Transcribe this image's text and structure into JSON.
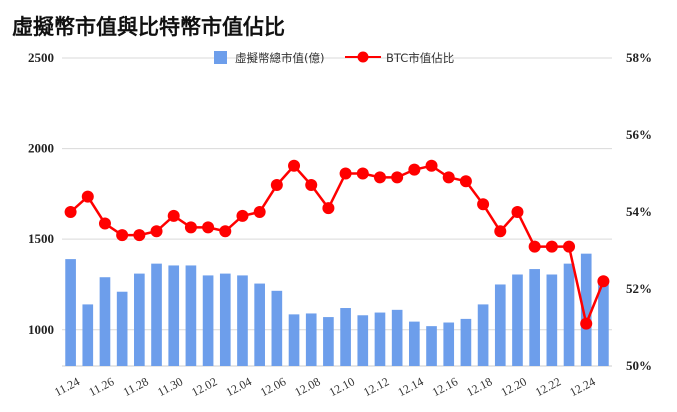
{
  "chart_data": {
    "type": "bar+line",
    "title": "虛擬幣市值與比特幣市值佔比",
    "categories": [
      "11.24",
      "11.25",
      "11.26",
      "11.27",
      "11.28",
      "11.29",
      "11.30",
      "12.01",
      "12.02",
      "12.03",
      "12.04",
      "12.05",
      "12.06",
      "12.07",
      "12.08",
      "12.09",
      "12.10",
      "12.11",
      "12.12",
      "12.13",
      "12.14",
      "12.15",
      "12.16",
      "12.17",
      "12.18",
      "12.19",
      "12.20",
      "12.21",
      "12.22",
      "12.23",
      "12.24",
      "12.25"
    ],
    "x_tick_labels": [
      "11.24",
      "11.26",
      "11.28",
      "11.30",
      "12.02",
      "12.04",
      "12.06",
      "12.08",
      "12.10",
      "12.12",
      "12.14",
      "12.16",
      "12.18",
      "12.20",
      "12.22",
      "12.24"
    ],
    "left_axis": {
      "ticks": [
        "1000",
        "1500",
        "2000",
        "2500"
      ],
      "range": [
        800,
        2500
      ]
    },
    "right_axis": {
      "ticks": [
        "50%",
        "52%",
        "54%",
        "56%",
        "58%"
      ],
      "range": [
        50,
        58
      ]
    },
    "series": [
      {
        "name": "虛擬幣總市值(億)",
        "kind": "bar",
        "axis": "left",
        "color": "#6d9eeb",
        "values": [
          1390,
          1140,
          1290,
          1210,
          1310,
          1365,
          1355,
          1355,
          1300,
          1310,
          1300,
          1255,
          1215,
          1085,
          1090,
          1070,
          1120,
          1080,
          1095,
          1110,
          1045,
          1020,
          1040,
          1060,
          1140,
          1250,
          1305,
          1335,
          1305,
          1365,
          1420,
          1260
        ]
      },
      {
        "name": "BTC市值佔比",
        "kind": "line",
        "axis": "right",
        "color": "#ff0000",
        "values": [
          54.0,
          54.4,
          53.7,
          53.4,
          53.4,
          53.5,
          53.9,
          53.6,
          53.6,
          53.5,
          53.9,
          54.0,
          54.7,
          55.2,
          54.7,
          54.1,
          55.0,
          55.0,
          54.9,
          54.9,
          55.1,
          55.2,
          54.9,
          54.8,
          54.2,
          53.5,
          54.0,
          53.1,
          53.1,
          53.1,
          51.1,
          52.2
        ]
      }
    ],
    "grid": true,
    "legend_position": "top-center"
  }
}
